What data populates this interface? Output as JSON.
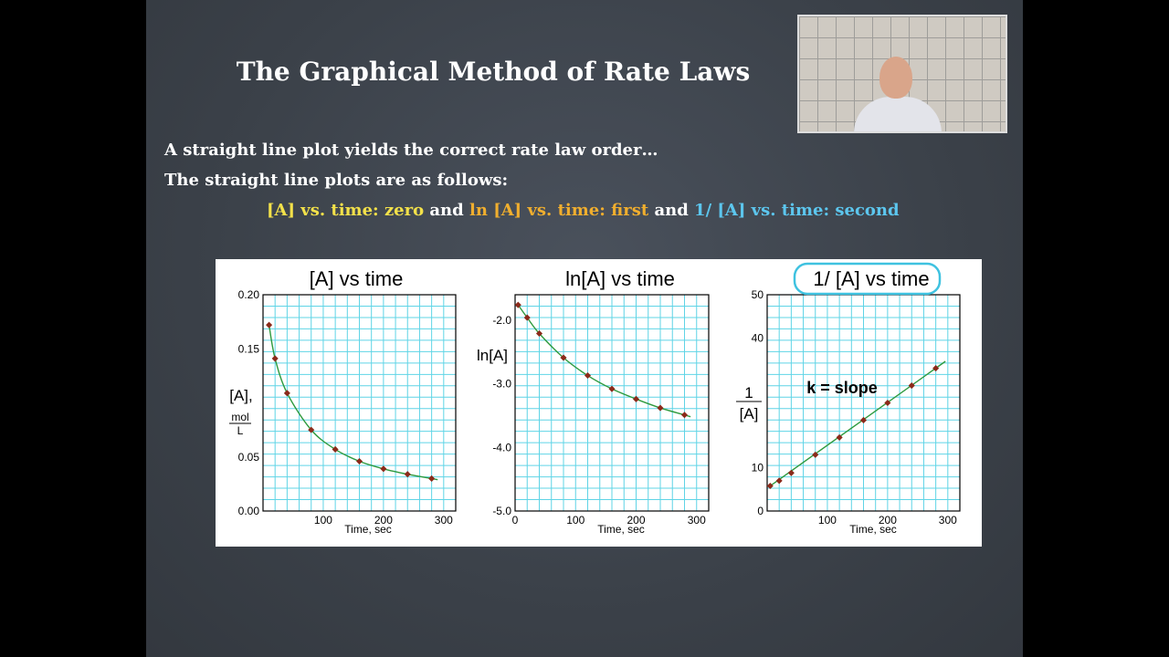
{
  "slide": {
    "title": "The Graphical Method of Rate Laws",
    "line1": "A straight line plot yields the correct rate law order…",
    "line2": "The straight line plots are as follows:",
    "line3": {
      "part1": "[A] vs. time: zero",
      "and1": " and ",
      "part2": "ln [A] vs. time: first",
      "and2": " and ",
      "part3": "1/ [A] vs. time: second"
    },
    "colors": {
      "zero": "#f3e14a",
      "first": "#f0ae2e",
      "second": "#5cc6ee"
    }
  },
  "webcam": {
    "icon": "presenter-video"
  },
  "chart_data": [
    {
      "type": "scatter",
      "title": "[A]  vs time",
      "ylabel_top": "[A],",
      "ylabel_unit_num": "mol",
      "ylabel_unit_den": "L",
      "xlabel": "Time, sec",
      "xlim": [
        0,
        320
      ],
      "ylim": [
        0,
        0.2
      ],
      "xticks": [
        100,
        200,
        300
      ],
      "xtick_labels": [
        "100",
        "200",
        "300"
      ],
      "yticks": [
        0,
        0.05,
        0.15,
        0.2
      ],
      "ytick_labels": [
        "0.00",
        "0.05",
        "0.15",
        "0.20"
      ],
      "x": [
        10,
        20,
        40,
        80,
        120,
        160,
        200,
        240,
        280
      ],
      "y": [
        0.172,
        0.141,
        0.109,
        0.075,
        0.057,
        0.046,
        0.039,
        0.034,
        0.03
      ],
      "curve": "smooth",
      "grid": true
    },
    {
      "type": "scatter",
      "title": "ln[A] vs time",
      "ylabel": "ln[A]",
      "xlabel": "Time, sec",
      "xlim": [
        0,
        320
      ],
      "ylim": [
        -5.0,
        -1.6
      ],
      "xticks": [
        0,
        100,
        200,
        300
      ],
      "xtick_labels": [
        "0",
        "100",
        "200",
        "300"
      ],
      "yticks": [
        -2.0,
        -3.0,
        -4.0,
        -5.0
      ],
      "ytick_labels": [
        "-2.0",
        "-3.0",
        "-4.0",
        "-5.0"
      ],
      "x": [
        5,
        20,
        40,
        80,
        120,
        160,
        200,
        240,
        280
      ],
      "y": [
        -1.76,
        -1.96,
        -2.21,
        -2.59,
        -2.87,
        -3.08,
        -3.24,
        -3.38,
        -3.49
      ],
      "curve": "smooth",
      "grid": true
    },
    {
      "type": "scatter",
      "title": "1/ [A] vs time",
      "ylabel_num": "1",
      "ylabel_den": "[A]",
      "annotation": "k = slope",
      "xlabel": "Time, sec",
      "xlim": [
        0,
        320
      ],
      "ylim": [
        0,
        50
      ],
      "xticks": [
        100,
        200,
        300
      ],
      "xtick_labels": [
        "100",
        "200",
        "300"
      ],
      "yticks": [
        0,
        10,
        40,
        50
      ],
      "ytick_labels": [
        "0",
        "10",
        "40",
        "50"
      ],
      "x": [
        5,
        20,
        40,
        80,
        120,
        160,
        200,
        240,
        280
      ],
      "y": [
        5.8,
        7.0,
        8.8,
        13.0,
        17.0,
        21.0,
        25.0,
        29.0,
        33.0
      ],
      "curve": "linear",
      "grid": true
    }
  ]
}
